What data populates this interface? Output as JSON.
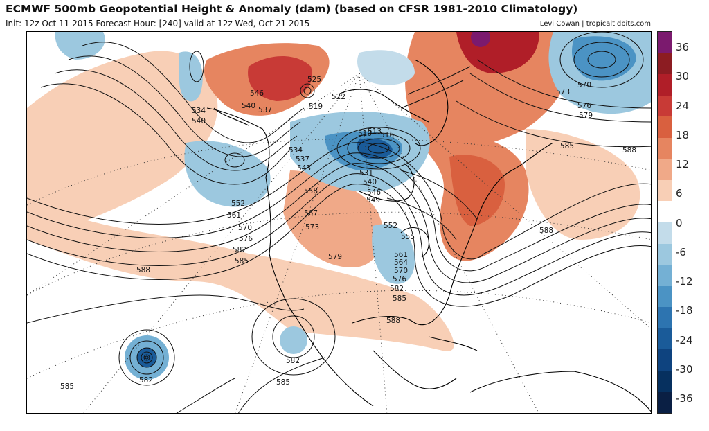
{
  "header": {
    "title": "ECMWF 500mb Geopotential Height & Anomaly (dam) (based on CFSR 1981-2010 Climatology)",
    "init_line": "Init: 12z Oct 11 2015   Forecast Hour: [240]   valid at 12z Wed, Oct 21 2015",
    "credit": "Levi Cowan | tropicaltidbits.com"
  },
  "colorbar": {
    "labels": [
      "36",
      "30",
      "24",
      "18",
      "12",
      "6",
      "0",
      "-6",
      "-12",
      "-18",
      "-24",
      "-30",
      "-36"
    ],
    "colors": [
      "#7b1a6e",
      "#8c1c22",
      "#b01e28",
      "#c83a36",
      "#d9603f",
      "#e68560",
      "#f0a988",
      "#f8cfb6",
      "#ffffff",
      "#c3dcea",
      "#9cc8df",
      "#74b0d4",
      "#4b93c4",
      "#2d74b0",
      "#1a5b99",
      "#0e437f",
      "#06305f",
      "#0a1f44"
    ]
  },
  "contour_labels": [
    "534",
    "540",
    "546",
    "540",
    "537",
    "525",
    "522",
    "519",
    "534",
    "537",
    "543",
    "531",
    "540",
    "546",
    "549",
    "552",
    "561",
    "570",
    "576",
    "582",
    "585",
    "558",
    "567",
    "573",
    "579",
    "510",
    "513",
    "516",
    "552",
    "555",
    "561",
    "564",
    "570",
    "576",
    "582",
    "585",
    "588",
    "570",
    "573",
    "576",
    "579",
    "585",
    "588",
    "588",
    "588",
    "582",
    "585",
    "582",
    "585"
  ]
}
